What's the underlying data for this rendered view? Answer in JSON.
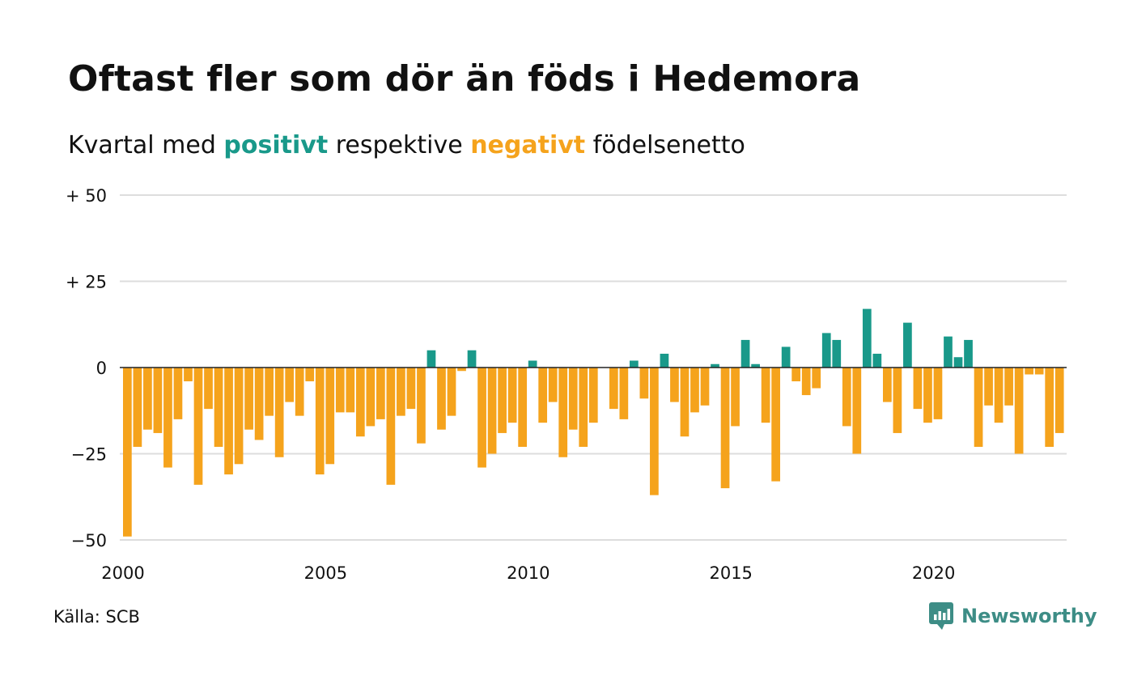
{
  "title": "Oftast fler som dör än föds i Hedemora",
  "subtitle": {
    "prefix": "Kvartal med ",
    "positive_word": "positivt",
    "middle": " respektive ",
    "negative_word": "negativt",
    "suffix": " födelsenetto"
  },
  "source": "Källa: SCB",
  "brand": {
    "name": "Newsworthy",
    "icon": "newsworthy-logo-icon",
    "color": "#3d8d86"
  },
  "colors": {
    "positive": "#19998a",
    "negative": "#f5a31c",
    "grid": "#dddddd",
    "zero_line": "#222222"
  },
  "chart_data": {
    "type": "bar",
    "ylim": [
      -50,
      50
    ],
    "yticks": [
      {
        "value": 50,
        "label": "+ 50"
      },
      {
        "value": 25,
        "label": "+ 25"
      },
      {
        "value": 0,
        "label": "0"
      },
      {
        "value": -25,
        "label": "−25"
      },
      {
        "value": -50,
        "label": "−50"
      }
    ],
    "xticks": [
      "2000",
      "2005",
      "2010",
      "2015",
      "2020"
    ],
    "start_year": 2000,
    "values": [
      -49,
      -23,
      -18,
      -19,
      -29,
      -15,
      -4,
      -34,
      -12,
      -23,
      -31,
      -28,
      -18,
      -21,
      -14,
      -26,
      -10,
      -14,
      -4,
      -31,
      -28,
      -13,
      -13,
      -20,
      -17,
      -15,
      -34,
      -14,
      -12,
      -22,
      5,
      -18,
      -14,
      -1,
      5,
      -29,
      -25,
      -19,
      -16,
      -23,
      2,
      -16,
      -10,
      -26,
      -18,
      -23,
      -16,
      0,
      -12,
      -15,
      2,
      -9,
      -37,
      4,
      -10,
      -20,
      -13,
      -11,
      1,
      -35,
      -17,
      8,
      1,
      -16,
      -33,
      6,
      -4,
      -8,
      -6,
      10,
      8,
      -17,
      -25,
      17,
      4,
      -10,
      -19,
      13,
      -12,
      -16,
      -15,
      9,
      3,
      8,
      -23,
      -11,
      -16,
      -11,
      -25,
      -2,
      -2,
      -23,
      -19
    ]
  }
}
